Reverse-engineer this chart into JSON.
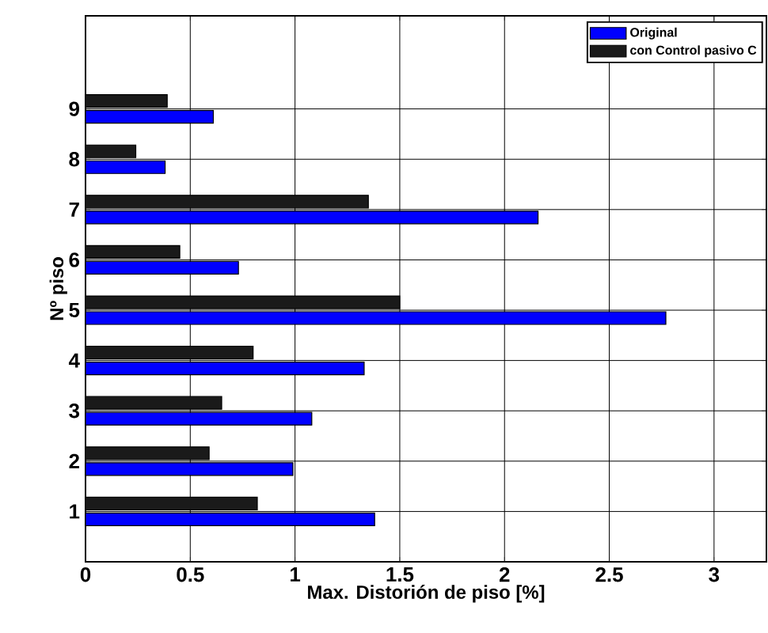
{
  "chart_data": {
    "type": "bar",
    "orientation": "horizontal",
    "categories": [
      "9",
      "8",
      "7",
      "6",
      "5",
      "4",
      "3",
      "2",
      "1"
    ],
    "series": [
      {
        "name": "Original",
        "color": "#0000ff",
        "values": [
          0.61,
          0.38,
          2.16,
          0.73,
          2.77,
          1.33,
          1.08,
          0.99,
          1.38
        ]
      },
      {
        "name": "con Control pasivo C",
        "color": "#1a1a1a",
        "values": [
          0.39,
          0.24,
          1.35,
          0.45,
          1.5,
          0.8,
          0.65,
          0.59,
          0.82
        ]
      }
    ],
    "xlabel": "Max. Distorión de piso [%]",
    "ylabel": "Nº piso",
    "xlim": [
      0,
      3.25
    ],
    "xticks": [
      0,
      0.5,
      1,
      1.5,
      2,
      2.5,
      3
    ],
    "grid": true,
    "legend": "top right"
  }
}
